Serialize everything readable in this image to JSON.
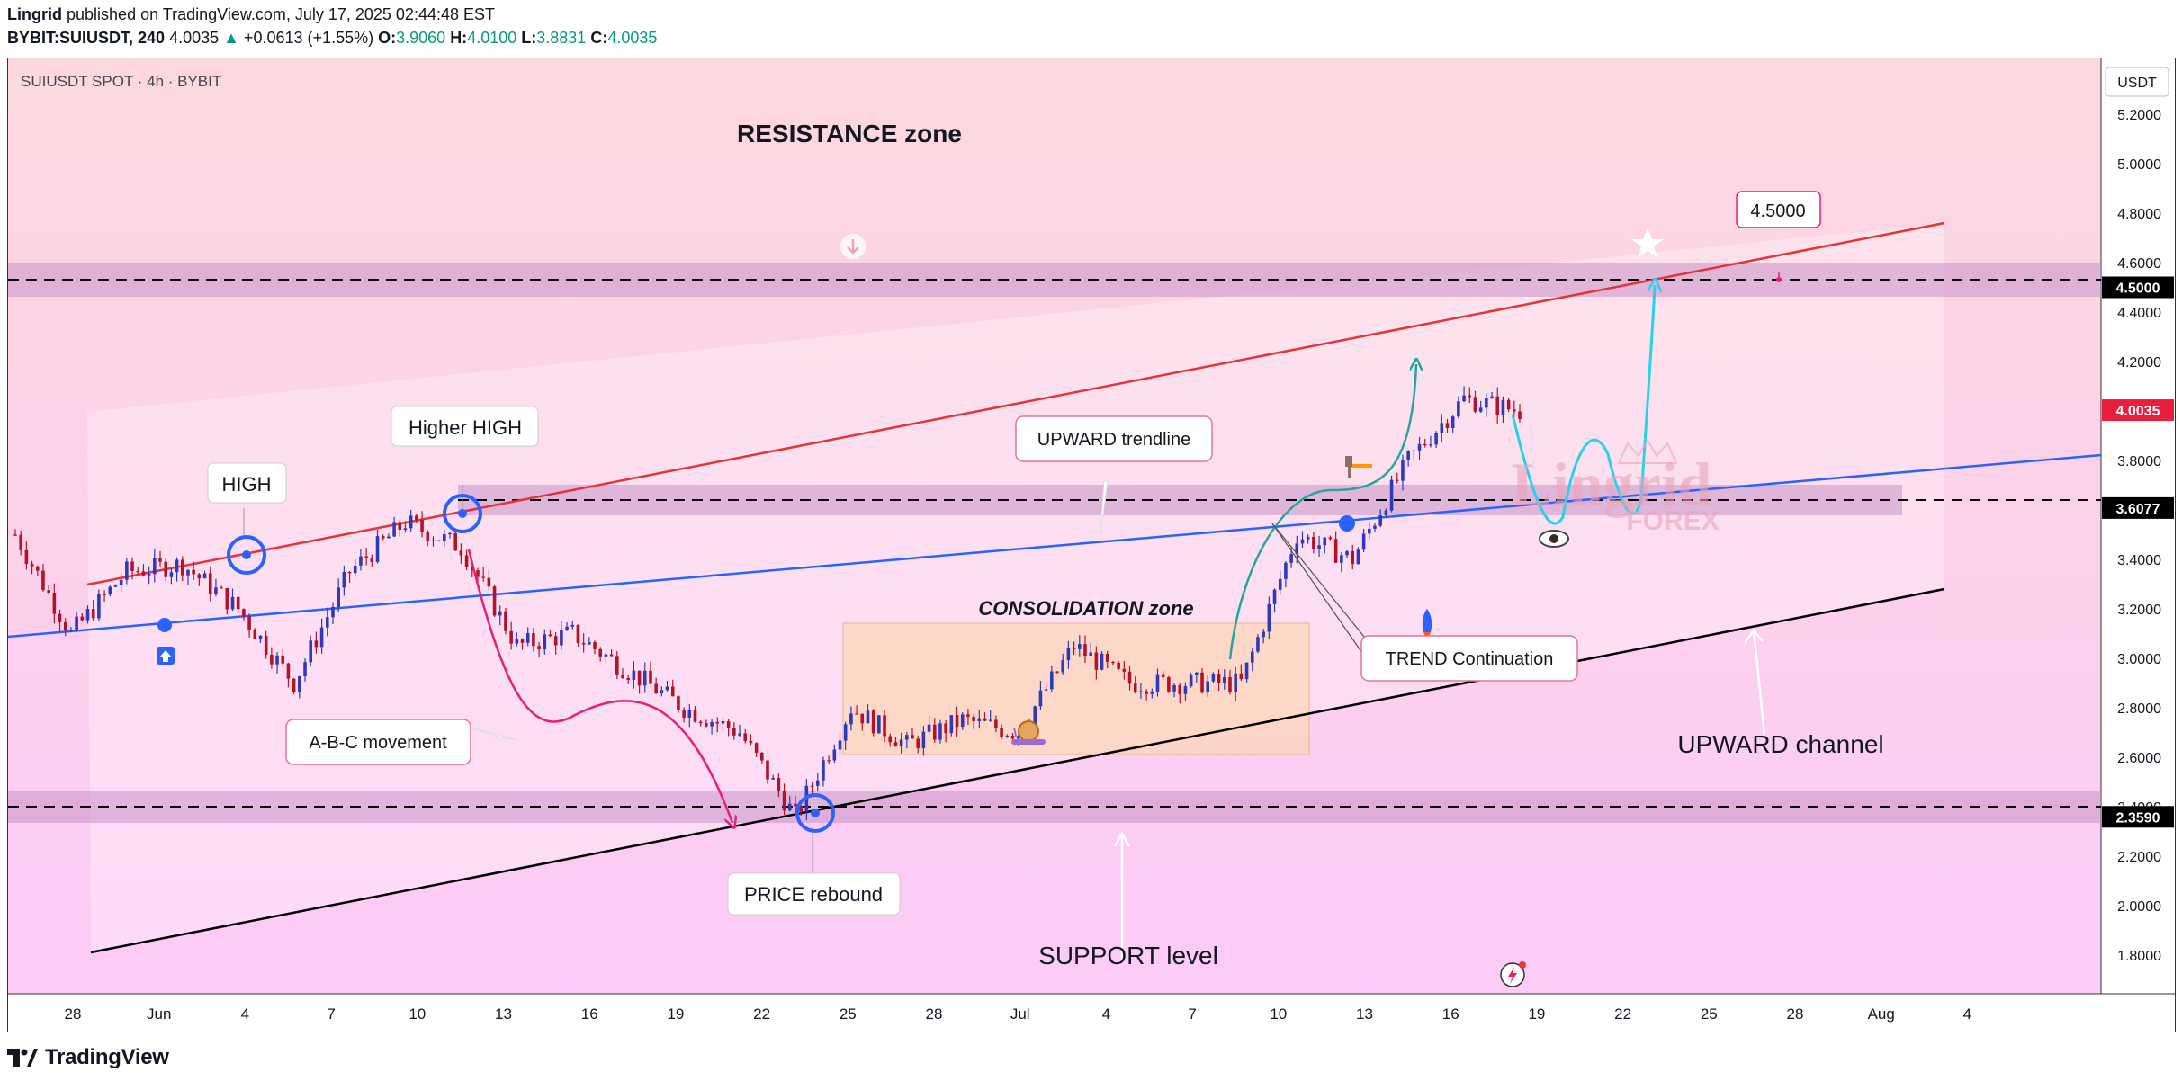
{
  "header": {
    "author": "Lingrid",
    "published_text": "published on TradingView.com, July 17, 2025 02:44:48 EST",
    "symbol": "BYBIT:SUIUSDT, 240",
    "last": "4.0035",
    "change": "+0.0613 (+1.55%)",
    "o_label": "O:",
    "o": "3.9060",
    "h_label": "H:",
    "h": "4.0100",
    "l_label": "L:",
    "l": "3.8831",
    "c_label": "C:",
    "c": "4.0035"
  },
  "chart_legend": "SUIUSDT SPOT · 4h · BYBIT",
  "watermark": {
    "line1": "Lingrid",
    "line2": "FOREX"
  },
  "footer": {
    "brand": "TradingView"
  },
  "colors": {
    "bg_top": "#fcd8de",
    "bg_bottom": "#fccbf7",
    "zone": "#c891c8",
    "resistance_line": "#e5333b",
    "trend_line": "#2962ff",
    "support_line": "#000000",
    "projection": "#25d3ea",
    "abc_arrow": "#e91e7a",
    "continuation_arrow": "#26a69a",
    "candle_up": "#2f3ab8",
    "candle_down": "#b31228"
  },
  "chart_data": {
    "type": "candlestick",
    "currency": "USDT",
    "y_ticks": [
      "5.2000",
      "5.0000",
      "4.8000",
      "4.6000",
      "4.4000",
      "4.2000",
      "3.8000",
      "3.4000",
      "3.2000",
      "3.0000",
      "2.8000",
      "2.6000",
      "2.4000",
      "2.2000",
      "2.0000",
      "1.8000"
    ],
    "price_tags": [
      {
        "price": "4.5000",
        "kind": "level"
      },
      {
        "price": "4.0035",
        "kind": "last"
      },
      {
        "price": "3.6077",
        "kind": "level"
      },
      {
        "price": "2.3590",
        "kind": "level"
      }
    ],
    "x_ticks": [
      "28",
      "Jun",
      "4",
      "7",
      "10",
      "13",
      "16",
      "19",
      "22",
      "25",
      "28",
      "Jul",
      "4",
      "7",
      "10",
      "13",
      "16",
      "19",
      "22",
      "25",
      "28",
      "Aug",
      "4"
    ],
    "levels": {
      "resistance": 4.5,
      "breakout": 3.6077,
      "support": 2.359
    },
    "candles": [
      [
        "May 27",
        3.5
      ],
      [
        "May 29",
        3.1
      ],
      [
        "Jun 1",
        3.35
      ],
      [
        "Jun 3",
        3.38
      ],
      [
        "Jun 5",
        3.2
      ],
      [
        "Jun 6",
        2.9
      ],
      [
        "Jun 8",
        3.35
      ],
      [
        "Jun 10",
        3.55
      ],
      [
        "Jun 11",
        3.45
      ],
      [
        "Jun 13",
        3.05
      ],
      [
        "Jun 15",
        3.1
      ],
      [
        "Jun 17",
        2.95
      ],
      [
        "Jun 19",
        2.8
      ],
      [
        "Jun 21",
        2.7
      ],
      [
        "Jun 22",
        2.36
      ],
      [
        "Jun 24",
        2.8
      ],
      [
        "Jun 26",
        2.65
      ],
      [
        "Jun 28",
        2.75
      ],
      [
        "Jul 1",
        2.7
      ],
      [
        "Jul 3",
        3.05
      ],
      [
        "Jul 5",
        2.9
      ],
      [
        "Jul 7",
        2.9
      ],
      [
        "Jul 9",
        2.9
      ],
      [
        "Jul 11",
        3.5
      ],
      [
        "Jul 13",
        3.4
      ],
      [
        "Jul 14",
        3.8
      ],
      [
        "Jul 16",
        4.05
      ],
      [
        "Jul 17",
        4.0
      ]
    ]
  },
  "annotations": {
    "resistance_zone": "RESISTANCE zone",
    "higher_high": "Higher HIGH",
    "high": "HIGH",
    "upward_trendline": "UPWARD trendline",
    "consolidation": "CONSOLIDATION zone",
    "abc": "A-B-C movement",
    "trend_continuation": "TREND Continuation",
    "upward_channel": "UPWARD channel",
    "price_rebound": "PRICE rebound",
    "support_level": "SUPPORT level",
    "target": "4.5000"
  }
}
